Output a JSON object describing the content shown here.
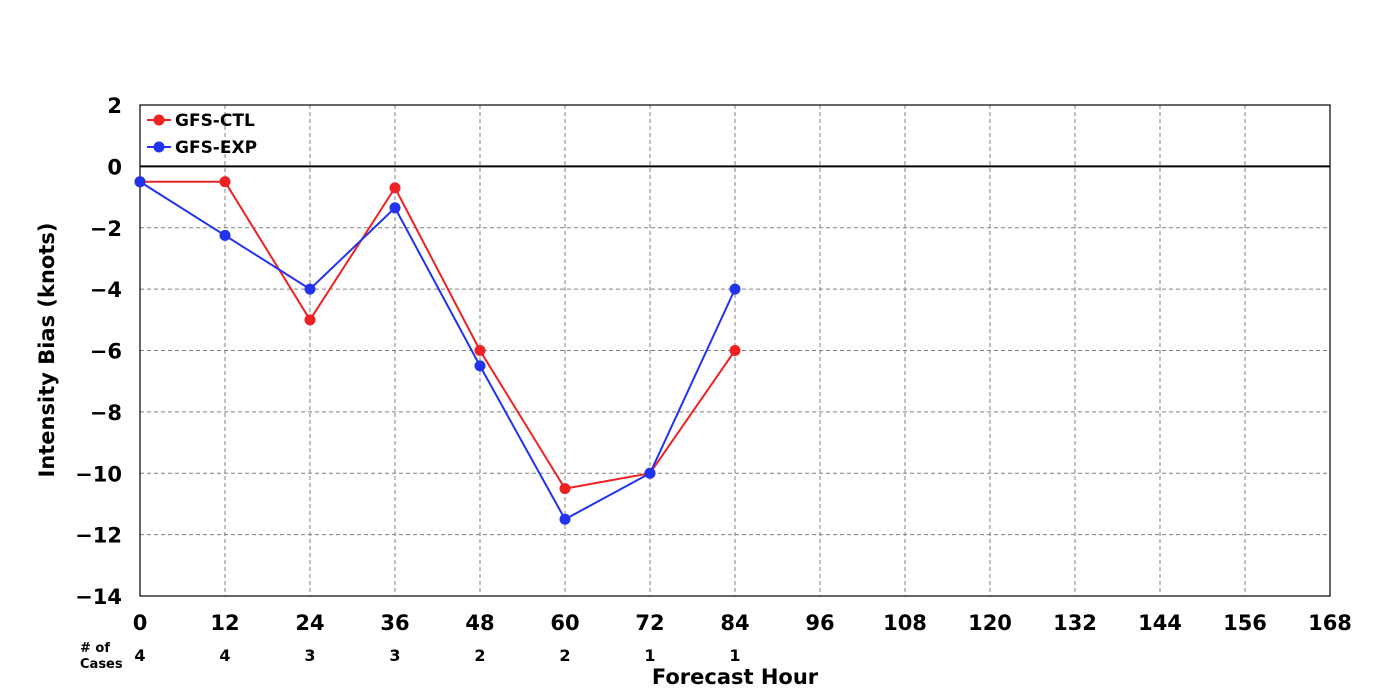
{
  "chart_data": {
    "type": "line",
    "xlabel": "Forecast Hour",
    "ylabel": "Intensity Bias (knots)",
    "xlim": [
      0,
      168
    ],
    "ylim": [
      -14,
      2
    ],
    "x_ticks": [
      0,
      12,
      24,
      36,
      48,
      60,
      72,
      84,
      96,
      108,
      120,
      132,
      144,
      156,
      168
    ],
    "y_ticks": [
      2,
      0,
      -2,
      -4,
      -6,
      -8,
      -10,
      -12,
      -14
    ],
    "grid": true,
    "zero_line": true,
    "legend_position": "top-left",
    "series": [
      {
        "name": "GFS-CTL",
        "color": "#ee2222",
        "x": [
          0,
          12,
          24,
          36,
          48,
          60,
          72,
          84
        ],
        "y": [
          -0.5,
          -0.5,
          -5.0,
          -0.7,
          -6.0,
          -10.5,
          -10.0,
          -6.0
        ]
      },
      {
        "name": "GFS-EXP",
        "color": "#2233ee",
        "x": [
          0,
          12,
          24,
          36,
          48,
          60,
          72,
          84
        ],
        "y": [
          -0.5,
          -2.25,
          -4.0,
          -1.35,
          -6.5,
          -11.5,
          -10.0,
          -4.0
        ]
      }
    ],
    "cases_label": [
      "# of",
      "Cases"
    ],
    "cases": {
      "x": [
        0,
        12,
        24,
        36,
        48,
        60,
        72,
        84
      ],
      "counts": [
        "4",
        "4",
        "3",
        "3",
        "2",
        "2",
        "1",
        "1"
      ]
    }
  }
}
